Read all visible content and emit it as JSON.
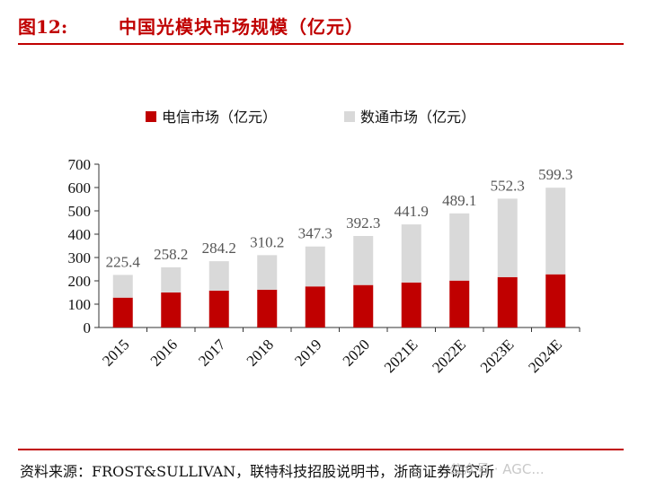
{
  "header": {
    "label": "图12:",
    "title": "中国光模块市场规模（亿元）"
  },
  "chart_data": {
    "type": "bar",
    "stacked": true,
    "categories": [
      "2015",
      "2016",
      "2017",
      "2018",
      "2019",
      "2020",
      "2021E",
      "2022E",
      "2023E",
      "2024E"
    ],
    "series": [
      {
        "name": "电信市场（亿元）",
        "color": "#c00000",
        "values": [
          128,
          150,
          158,
          162,
          176,
          182,
          193,
          201,
          216,
          228
        ]
      },
      {
        "name": "数通市场（亿元）",
        "color": "#d9d9d9",
        "values": [
          97.4,
          108.2,
          126.2,
          148.2,
          171.3,
          210.3,
          248.9,
          288.1,
          336.3,
          371.3
        ]
      }
    ],
    "totals": [
      "225.4",
      "258.2",
      "284.2",
      "310.2",
      "347.3",
      "392.3",
      "441.9",
      "489.1",
      "552.3",
      "599.3"
    ],
    "yticks": [
      "0",
      "100",
      "200",
      "300",
      "400",
      "500",
      "600",
      "700"
    ],
    "ylim": [
      0,
      700
    ],
    "legend_position": "top",
    "grid": false
  },
  "footer": {
    "source": "资料来源：FROST&SULLIVAN，联特科技招股说明书，浙商证券研究所",
    "watermark": "公众号 · AGC..."
  }
}
